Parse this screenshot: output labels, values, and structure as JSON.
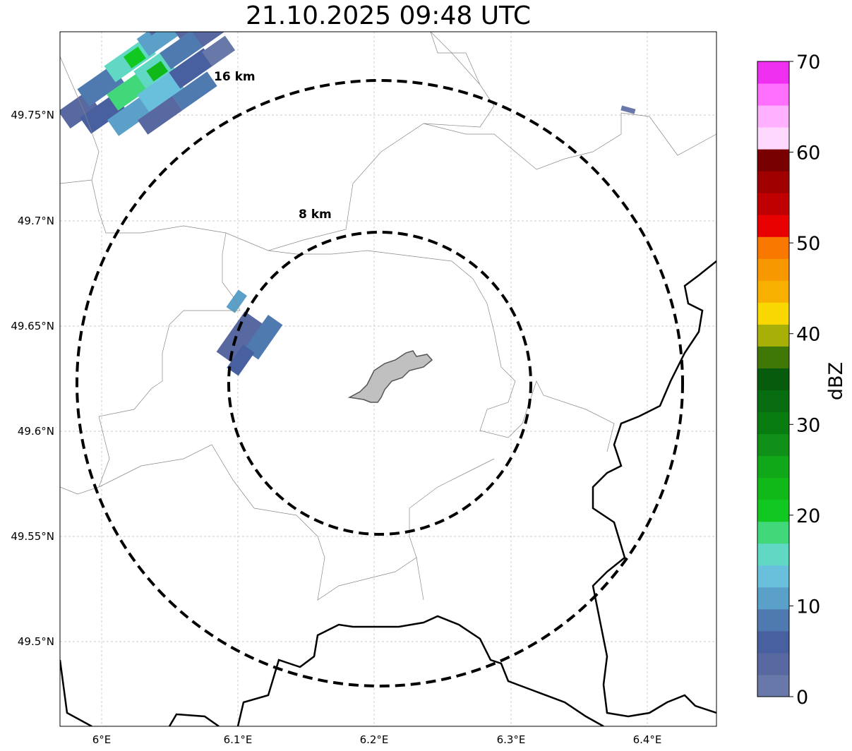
{
  "title": "21.10.2025 09:48 UTC",
  "map": {
    "lon_ticks": [
      "6°E",
      "6.1°E",
      "6.2°E",
      "6.3°E",
      "6.4°E"
    ],
    "lat_ticks": [
      "49.75°N",
      "49.7°N",
      "49.65°N",
      "49.6°N",
      "49.55°N",
      "49.5°N"
    ],
    "rings": [
      {
        "label": "8 km"
      },
      {
        "label": "16 km"
      }
    ]
  },
  "colorbar": {
    "title": "dBZ",
    "tick_labels": [
      "0",
      "10",
      "20",
      "30",
      "40",
      "50",
      "60",
      "70"
    ],
    "colors": [
      "#6878a8",
      "#5868a0",
      "#4860a0",
      "#4f7ab0",
      "#5aa0c8",
      "#68c0dc",
      "#60d8c4",
      "#40d878",
      "#10c820",
      "#10b818",
      "#10a818",
      "#109018",
      "#087c10",
      "#086c10",
      "#065c0c",
      "#407808",
      "#a8b008",
      "#f8d800",
      "#f8b000",
      "#f89800",
      "#f87800",
      "#e80000",
      "#c00000",
      "#a00000",
      "#780000",
      "#ffd8ff",
      "#ffb0ff",
      "#ff70ff",
      "#f030f0"
    ]
  }
}
